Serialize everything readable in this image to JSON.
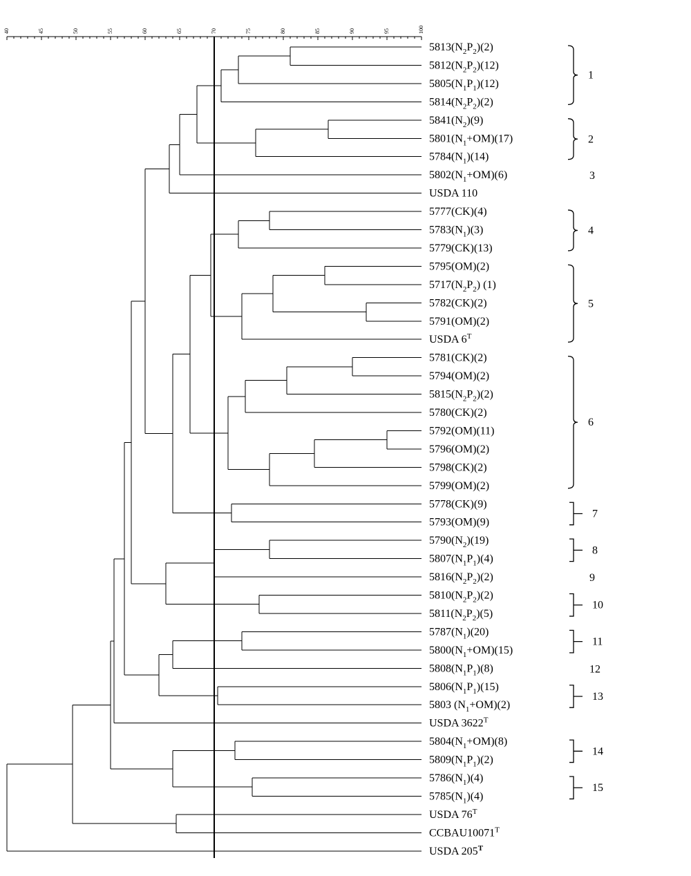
{
  "scale": {
    "min": 40,
    "max": 100,
    "ticks": [
      40,
      45,
      50,
      55,
      60,
      65,
      70,
      75,
      80,
      85,
      90,
      95,
      100
    ],
    "cutoff": 70
  },
  "leaves": [
    {
      "id": "L0",
      "label": [
        [
          "t",
          "5813(N"
        ],
        [
          "s",
          "2"
        ],
        [
          "t",
          "P"
        ],
        [
          "s",
          "2"
        ],
        [
          "t",
          ")(2)"
        ]
      ]
    },
    {
      "id": "L1",
      "label": [
        [
          "t",
          "5812(N"
        ],
        [
          "s",
          "2"
        ],
        [
          "t",
          "P"
        ],
        [
          "s",
          "2"
        ],
        [
          "t",
          ")(12)"
        ]
      ]
    },
    {
      "id": "L2",
      "label": [
        [
          "t",
          "5805(N"
        ],
        [
          "s",
          "1"
        ],
        [
          "t",
          "P"
        ],
        [
          "s",
          "1"
        ],
        [
          "t",
          ")(12)"
        ]
      ]
    },
    {
      "id": "L3",
      "label": [
        [
          "t",
          "5814(N"
        ],
        [
          "s",
          "2"
        ],
        [
          "t",
          "P"
        ],
        [
          "s",
          "2"
        ],
        [
          "t",
          ")(2)"
        ]
      ]
    },
    {
      "id": "L4",
      "label": [
        [
          "t",
          "5841(N"
        ],
        [
          "s",
          "2"
        ],
        [
          "t",
          ")(9)"
        ]
      ]
    },
    {
      "id": "L5",
      "label": [
        [
          "t",
          "5801(N"
        ],
        [
          "s",
          "1"
        ],
        [
          "t",
          "+OM)(17)"
        ]
      ]
    },
    {
      "id": "L6",
      "label": [
        [
          "t",
          "5784(N"
        ],
        [
          "s",
          "1"
        ],
        [
          "t",
          ")(14)"
        ]
      ]
    },
    {
      "id": "L7",
      "label": [
        [
          "t",
          "5802(N"
        ],
        [
          "s",
          "1"
        ],
        [
          "t",
          "+OM)(6)"
        ]
      ]
    },
    {
      "id": "L8",
      "label": [
        [
          "t",
          "USDA 110"
        ]
      ]
    },
    {
      "id": "L9",
      "label": [
        [
          "t",
          "5777(CK)(4)"
        ]
      ]
    },
    {
      "id": "L10",
      "label": [
        [
          "t",
          "5783(N"
        ],
        [
          "s",
          "1"
        ],
        [
          "t",
          ")(3)"
        ]
      ]
    },
    {
      "id": "L11",
      "label": [
        [
          "t",
          "5779(CK)(13)"
        ]
      ]
    },
    {
      "id": "L12",
      "label": [
        [
          "t",
          "5795(OM)(2)"
        ]
      ]
    },
    {
      "id": "L13",
      "label": [
        [
          "t",
          "5717(N"
        ],
        [
          "s",
          "2"
        ],
        [
          "t",
          "P"
        ],
        [
          "s",
          "2"
        ],
        [
          "t",
          ") (1)"
        ]
      ]
    },
    {
      "id": "L14",
      "label": [
        [
          "t",
          "5782(CK)(2)"
        ]
      ]
    },
    {
      "id": "L15",
      "label": [
        [
          "t",
          "5791(OM)(2)"
        ]
      ]
    },
    {
      "id": "L16",
      "label": [
        [
          "t",
          "USDA 6"
        ],
        [
          "u",
          "T"
        ]
      ]
    },
    {
      "id": "L17",
      "label": [
        [
          "t",
          "5781(CK)(2)"
        ]
      ]
    },
    {
      "id": "L18",
      "label": [
        [
          "t",
          "5794(OM)(2)"
        ]
      ]
    },
    {
      "id": "L19",
      "label": [
        [
          "t",
          "5815(N"
        ],
        [
          "s",
          "2"
        ],
        [
          "t",
          "P"
        ],
        [
          "s",
          "2"
        ],
        [
          "t",
          ")(2)"
        ]
      ]
    },
    {
      "id": "L20",
      "label": [
        [
          "t",
          "5780(CK)(2)"
        ]
      ]
    },
    {
      "id": "L21",
      "label": [
        [
          "t",
          "5792(OM)(11)"
        ]
      ]
    },
    {
      "id": "L22",
      "label": [
        [
          "t",
          "5796(OM)(2)"
        ]
      ]
    },
    {
      "id": "L23",
      "label": [
        [
          "t",
          "5798(CK)(2)"
        ]
      ]
    },
    {
      "id": "L24",
      "label": [
        [
          "t",
          "5799(OM)(2)"
        ]
      ]
    },
    {
      "id": "L25",
      "label": [
        [
          "t",
          "5778(CK)(9)"
        ]
      ]
    },
    {
      "id": "L26",
      "label": [
        [
          "t",
          "5793(OM)(9)"
        ]
      ]
    },
    {
      "id": "L27",
      "label": [
        [
          "t",
          "5790(N"
        ],
        [
          "s",
          "2"
        ],
        [
          "t",
          ")(19)"
        ]
      ]
    },
    {
      "id": "L28",
      "label": [
        [
          "t",
          "5807(N"
        ],
        [
          "s",
          "1"
        ],
        [
          "t",
          "P"
        ],
        [
          "s",
          "1"
        ],
        [
          "t",
          ")(4)"
        ]
      ]
    },
    {
      "id": "L29",
      "label": [
        [
          "t",
          "5816(N"
        ],
        [
          "s",
          "2"
        ],
        [
          "t",
          "P"
        ],
        [
          "s",
          "2"
        ],
        [
          "t",
          ")(2)"
        ]
      ]
    },
    {
      "id": "L30",
      "label": [
        [
          "t",
          "5810(N"
        ],
        [
          "s",
          "2"
        ],
        [
          "t",
          "P"
        ],
        [
          "s",
          "2"
        ],
        [
          "t",
          ")(2)"
        ]
      ]
    },
    {
      "id": "L31",
      "label": [
        [
          "t",
          "5811(N"
        ],
        [
          "s",
          "2"
        ],
        [
          "t",
          "P"
        ],
        [
          "s",
          "2"
        ],
        [
          "t",
          ")(5)"
        ]
      ]
    },
    {
      "id": "L32",
      "label": [
        [
          "t",
          "5787(N"
        ],
        [
          "s",
          "1"
        ],
        [
          "t",
          ")(20)"
        ]
      ]
    },
    {
      "id": "L33",
      "label": [
        [
          "t",
          "5800(N"
        ],
        [
          "s",
          "1"
        ],
        [
          "t",
          "+OM)(15)"
        ]
      ]
    },
    {
      "id": "L34",
      "label": [
        [
          "t",
          "5808(N"
        ],
        [
          "s",
          "1"
        ],
        [
          "t",
          "P"
        ],
        [
          "s",
          "1"
        ],
        [
          "t",
          ")(8)"
        ]
      ]
    },
    {
      "id": "L35",
      "label": [
        [
          "t",
          "5806(N"
        ],
        [
          "s",
          "1"
        ],
        [
          "t",
          "P"
        ],
        [
          "s",
          "1"
        ],
        [
          "t",
          ")(15)"
        ]
      ]
    },
    {
      "id": "L36",
      "label": [
        [
          "t",
          "5803 (N"
        ],
        [
          "s",
          "1"
        ],
        [
          "t",
          "+OM)(2)"
        ]
      ]
    },
    {
      "id": "L37",
      "label": [
        [
          "t",
          "USDA 3622"
        ],
        [
          "u",
          "T"
        ]
      ]
    },
    {
      "id": "L38",
      "label": [
        [
          "t",
          "5804(N"
        ],
        [
          "s",
          "1"
        ],
        [
          "t",
          "+OM)(8)"
        ]
      ]
    },
    {
      "id": "L39",
      "label": [
        [
          "t",
          "5809(N"
        ],
        [
          "s",
          "1"
        ],
        [
          "t",
          "P"
        ],
        [
          "s",
          "1"
        ],
        [
          "t",
          ")(2)"
        ]
      ]
    },
    {
      "id": "L40",
      "label": [
        [
          "t",
          "5786(N"
        ],
        [
          "s",
          "1"
        ],
        [
          "t",
          ")(4)"
        ]
      ]
    },
    {
      "id": "L41",
      "label": [
        [
          "t",
          "5785(N"
        ],
        [
          "s",
          "1"
        ],
        [
          "t",
          ")(4)"
        ]
      ]
    },
    {
      "id": "L42",
      "label": [
        [
          "t",
          "USDA 76"
        ],
        [
          "u",
          "T"
        ]
      ]
    },
    {
      "id": "L43",
      "label": [
        [
          "t",
          "CCBAU10071"
        ],
        [
          "u",
          "T"
        ]
      ]
    },
    {
      "id": "L44",
      "label": [
        [
          "t",
          "USDA 205"
        ],
        [
          "ub",
          "T"
        ]
      ]
    }
  ],
  "nodes": [
    {
      "id": "a1",
      "sim": 81,
      "children": [
        "L0",
        "L1"
      ]
    },
    {
      "id": "a2",
      "sim": 73.5,
      "children": [
        "a1",
        "L2"
      ]
    },
    {
      "id": "a3",
      "sim": 71,
      "children": [
        "a2",
        "L3"
      ]
    },
    {
      "id": "b1",
      "sim": 86.5,
      "children": [
        "L4",
        "L5"
      ]
    },
    {
      "id": "b2",
      "sim": 76,
      "children": [
        "b1",
        "L6"
      ]
    },
    {
      "id": "ab",
      "sim": 67.5,
      "children": [
        "a3",
        "b2"
      ]
    },
    {
      "id": "ab3",
      "sim": 65,
      "children": [
        "ab",
        "L7"
      ]
    },
    {
      "id": "ab4",
      "sim": 63.5,
      "children": [
        "ab3",
        "L8"
      ]
    },
    {
      "id": "c1",
      "sim": 78,
      "children": [
        "L9",
        "L10"
      ]
    },
    {
      "id": "c2",
      "sim": 73.5,
      "children": [
        "c1",
        "L11"
      ]
    },
    {
      "id": "d1",
      "sim": 86,
      "children": [
        "L12",
        "L13"
      ]
    },
    {
      "id": "d2",
      "sim": 92,
      "children": [
        "L14",
        "L15"
      ]
    },
    {
      "id": "d3",
      "sim": 78.5,
      "children": [
        "d1",
        "d2"
      ]
    },
    {
      "id": "d4",
      "sim": 74,
      "children": [
        "d3",
        "L16"
      ]
    },
    {
      "id": "cd",
      "sim": 69.5,
      "children": [
        "c2",
        "d4"
      ]
    },
    {
      "id": "e1",
      "sim": 90,
      "children": [
        "L17",
        "L18"
      ]
    },
    {
      "id": "e2",
      "sim": 80.5,
      "children": [
        "e1",
        "L19"
      ]
    },
    {
      "id": "e3",
      "sim": 74.5,
      "children": [
        "e2",
        "L20"
      ]
    },
    {
      "id": "e4",
      "sim": 95,
      "children": [
        "L21",
        "L22"
      ]
    },
    {
      "id": "e5",
      "sim": 84.5,
      "children": [
        "e4",
        "L23"
      ]
    },
    {
      "id": "e6",
      "sim": 78,
      "children": [
        "e5",
        "L24"
      ]
    },
    {
      "id": "e7",
      "sim": 72,
      "children": [
        "e3",
        "e6"
      ]
    },
    {
      "id": "cde",
      "sim": 66.5,
      "children": [
        "cd",
        "e7"
      ]
    },
    {
      "id": "f1",
      "sim": 72.5,
      "children": [
        "L25",
        "L26"
      ]
    },
    {
      "id": "cdef",
      "sim": 64,
      "children": [
        "cde",
        "f1"
      ]
    },
    {
      "id": "top1",
      "sim": 60,
      "children": [
        "ab4",
        "cdef"
      ]
    },
    {
      "id": "g1",
      "sim": 78,
      "children": [
        "L27",
        "L28"
      ]
    },
    {
      "id": "g2",
      "sim": 70,
      "children": [
        "g1",
        "L29"
      ]
    },
    {
      "id": "h1",
      "sim": 76.5,
      "children": [
        "L30",
        "L31"
      ]
    },
    {
      "id": "gh",
      "sim": 63,
      "children": [
        "g2",
        "h1"
      ]
    },
    {
      "id": "top2",
      "sim": 58,
      "children": [
        "top1",
        "gh"
      ]
    },
    {
      "id": "i1",
      "sim": 74,
      "children": [
        "L32",
        "L33"
      ]
    },
    {
      "id": "i2",
      "sim": 64,
      "children": [
        "i1",
        "L34"
      ]
    },
    {
      "id": "j1",
      "sim": 70.5,
      "children": [
        "L35",
        "L36"
      ]
    },
    {
      "id": "ij",
      "sim": 62,
      "children": [
        "i2",
        "j1"
      ]
    },
    {
      "id": "top3",
      "sim": 57,
      "children": [
        "top2",
        "ij"
      ]
    },
    {
      "id": "top4",
      "sim": 55.5,
      "children": [
        "top3",
        "L37"
      ]
    },
    {
      "id": "k1",
      "sim": 73,
      "children": [
        "L38",
        "L39"
      ]
    },
    {
      "id": "k2",
      "sim": 75.5,
      "children": [
        "L40",
        "L41"
      ]
    },
    {
      "id": "kk",
      "sim": 64,
      "children": [
        "k1",
        "k2"
      ]
    },
    {
      "id": "top5",
      "sim": 55,
      "children": [
        "top4",
        "kk"
      ]
    },
    {
      "id": "m1",
      "sim": 64.5,
      "children": [
        "L42",
        "L43"
      ]
    },
    {
      "id": "top6",
      "sim": 49.5,
      "children": [
        "top5",
        "m1"
      ]
    },
    {
      "id": "root",
      "sim": 40,
      "children": [
        "top6",
        "L44"
      ]
    }
  ],
  "groups": [
    {
      "label": "1",
      "from": 0,
      "to": 3,
      "bracket": true
    },
    {
      "label": "2",
      "from": 4,
      "to": 6,
      "bracket": true
    },
    {
      "label": "3",
      "from": 7,
      "to": 7,
      "bracket": false
    },
    {
      "label": "4",
      "from": 9,
      "to": 11,
      "bracket": true
    },
    {
      "label": "5",
      "from": 12,
      "to": 16,
      "bracket": true
    },
    {
      "label": "6",
      "from": 17,
      "to": 24,
      "bracket": true
    },
    {
      "label": "7",
      "from": 25,
      "to": 26,
      "bracket": true
    },
    {
      "label": "8",
      "from": 27,
      "to": 28,
      "bracket": true
    },
    {
      "label": "9",
      "from": 29,
      "to": 29,
      "bracket": false
    },
    {
      "label": "10",
      "from": 30,
      "to": 31,
      "bracket": true
    },
    {
      "label": "11",
      "from": 32,
      "to": 33,
      "bracket": true
    },
    {
      "label": "12",
      "from": 34,
      "to": 34,
      "bracket": false
    },
    {
      "label": "13",
      "from": 35,
      "to": 36,
      "bracket": true
    },
    {
      "label": "14",
      "from": 38,
      "to": 39,
      "bracket": true
    },
    {
      "label": "15",
      "from": 40,
      "to": 41,
      "bracket": true
    }
  ]
}
